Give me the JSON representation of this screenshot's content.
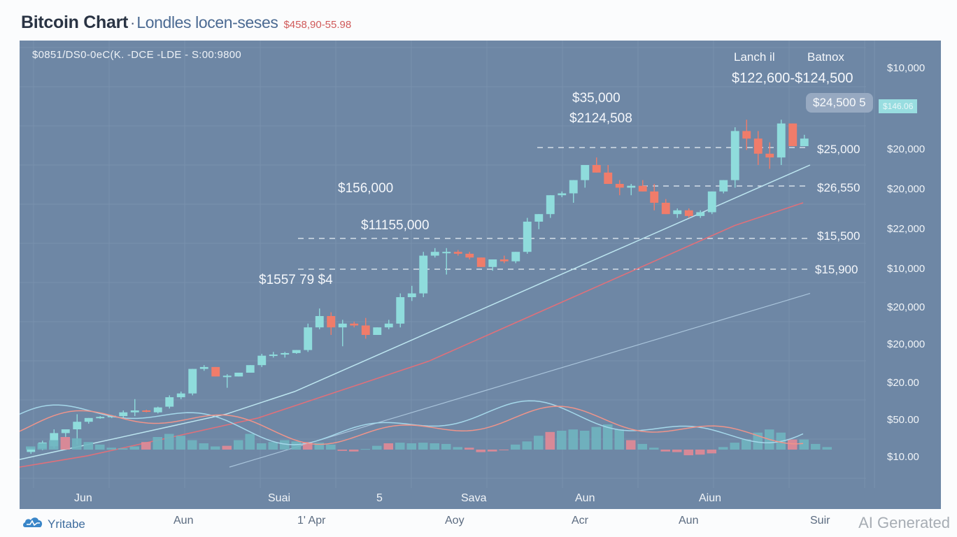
{
  "header": {
    "title": "Bitcoin Chart",
    "separator": "·",
    "subtitle": "Londles locen-seses",
    "price_range": "$458,90-55.98"
  },
  "panel": {
    "ticker_line": "$0851/DS0-0eC(K. -DCE -LDE - S:00:9800",
    "annotations": {
      "peak_label_a": "Lanch il",
      "peak_label_b": "Batnox",
      "peak_range": "$122,600-$124,500",
      "mid_high_1": "$35,000",
      "mid_high_2": "$2124,508",
      "left_high_1": "$156,000",
      "left_high_2": "$11155,000",
      "left_low": "$1557 79 $4"
    },
    "current_price_pill": "$24,500 5",
    "current_price_tag": "$146.06",
    "level_labels": [
      "$25,000",
      "$26,550",
      "$15,500",
      "$15,900"
    ]
  },
  "chart_data": {
    "type": "candlestick",
    "title": "Bitcoin Chart",
    "y_axis_ticks": [
      "$10,000",
      "$20,000",
      "$20,000",
      "$22,000",
      "$10,000",
      "$20,000",
      "$20,000",
      "$20.00",
      "$50.00",
      "$10.00"
    ],
    "x_axis_ticks_inner": [
      "Jun",
      "Suai",
      "5",
      "Sava",
      "Aun",
      "Aiun"
    ],
    "x_axis_ticks_outer": [
      "Aun",
      "1' Apr",
      "Aoy",
      "Acr",
      "Aun",
      "Suir"
    ],
    "ylim": [
      0,
      100
    ],
    "candles": [
      {
        "o": 4,
        "h": 5,
        "l": 3.5,
        "c": 5
      },
      {
        "o": 5,
        "h": 7,
        "l": 4.5,
        "c": 6.5
      },
      {
        "o": 5.5,
        "h": 10,
        "l": 5,
        "c": 9
      },
      {
        "o": 9,
        "h": 10,
        "l": 8,
        "c": 10
      },
      {
        "o": 10,
        "h": 14,
        "l": 6,
        "c": 12
      },
      {
        "o": 12,
        "h": 13,
        "l": 11.5,
        "c": 13
      },
      {
        "o": 13,
        "h": 13.5,
        "l": 12.8,
        "c": 13.3
      },
      {
        "o": 13.2,
        "h": 13.8,
        "l": 13,
        "c": 13.6
      },
      {
        "o": 13.5,
        "h": 15,
        "l": 13,
        "c": 14.5
      },
      {
        "o": 14.5,
        "h": 18,
        "l": 13.5,
        "c": 15
      },
      {
        "o": 15,
        "h": 15.2,
        "l": 14.5,
        "c": 14.7
      },
      {
        "o": 14.5,
        "h": 16,
        "l": 14.2,
        "c": 15.8
      },
      {
        "o": 16,
        "h": 19,
        "l": 15.5,
        "c": 18.5
      },
      {
        "o": 18.5,
        "h": 20,
        "l": 18,
        "c": 19.5
      },
      {
        "o": 19.5,
        "h": 26,
        "l": 19,
        "c": 26
      },
      {
        "o": 26,
        "h": 27,
        "l": 25.5,
        "c": 26.5
      },
      {
        "o": 26.5,
        "h": 26.5,
        "l": 24,
        "c": 24
      },
      {
        "o": 24,
        "h": 24.6,
        "l": 21,
        "c": 24.2
      },
      {
        "o": 24,
        "h": 25,
        "l": 24,
        "c": 25
      },
      {
        "o": 25,
        "h": 27,
        "l": 25,
        "c": 27
      },
      {
        "o": 27,
        "h": 30,
        "l": 26.5,
        "c": 29.5
      },
      {
        "o": 29.5,
        "h": 30.5,
        "l": 29,
        "c": 29.8
      },
      {
        "o": 29.8,
        "h": 30.5,
        "l": 29,
        "c": 30.2
      },
      {
        "o": 30.2,
        "h": 31,
        "l": 30,
        "c": 31
      },
      {
        "o": 31,
        "h": 38,
        "l": 30.5,
        "c": 37
      },
      {
        "o": 37,
        "h": 42,
        "l": 36.5,
        "c": 40
      },
      {
        "o": 40,
        "h": 41,
        "l": 35,
        "c": 37
      },
      {
        "o": 37,
        "h": 39,
        "l": 32,
        "c": 38
      },
      {
        "o": 38,
        "h": 38.5,
        "l": 37,
        "c": 37.5
      },
      {
        "o": 37.5,
        "h": 39.5,
        "l": 34,
        "c": 35
      },
      {
        "o": 35,
        "h": 37,
        "l": 35,
        "c": 37
      },
      {
        "o": 37,
        "h": 39,
        "l": 36.5,
        "c": 38
      },
      {
        "o": 38,
        "h": 46,
        "l": 37,
        "c": 45
      },
      {
        "o": 45,
        "h": 48,
        "l": 44,
        "c": 46
      },
      {
        "o": 46,
        "h": 57,
        "l": 45,
        "c": 56
      },
      {
        "o": 56,
        "h": 58,
        "l": 55.5,
        "c": 57
      },
      {
        "o": 57,
        "h": 58,
        "l": 51,
        "c": 57
      },
      {
        "o": 57,
        "h": 57.5,
        "l": 56,
        "c": 56.5
      },
      {
        "o": 56.5,
        "h": 57,
        "l": 55,
        "c": 55.5
      },
      {
        "o": 55.5,
        "h": 55.5,
        "l": 53,
        "c": 53
      },
      {
        "o": 53,
        "h": 55,
        "l": 52,
        "c": 55
      },
      {
        "o": 55,
        "h": 56,
        "l": 54,
        "c": 54.5
      },
      {
        "o": 54.5,
        "h": 57,
        "l": 54,
        "c": 57
      },
      {
        "o": 57,
        "h": 66,
        "l": 56.5,
        "c": 65
      },
      {
        "o": 65,
        "h": 67,
        "l": 63,
        "c": 67
      },
      {
        "o": 67,
        "h": 72,
        "l": 66,
        "c": 72
      },
      {
        "o": 72,
        "h": 73,
        "l": 71.5,
        "c": 72.5
      },
      {
        "o": 72.5,
        "h": 76,
        "l": 70,
        "c": 76
      },
      {
        "o": 76,
        "h": 80,
        "l": 74,
        "c": 80
      },
      {
        "o": 80,
        "h": 82,
        "l": 78,
        "c": 78
      },
      {
        "o": 78,
        "h": 80,
        "l": 75,
        "c": 75
      },
      {
        "o": 75,
        "h": 76,
        "l": 72,
        "c": 74
      },
      {
        "o": 74,
        "h": 75,
        "l": 72,
        "c": 74.5
      },
      {
        "o": 74.5,
        "h": 76,
        "l": 73,
        "c": 73
      },
      {
        "o": 73,
        "h": 75,
        "l": 68,
        "c": 70
      },
      {
        "o": 70,
        "h": 71,
        "l": 67,
        "c": 67
      },
      {
        "o": 67,
        "h": 68.5,
        "l": 66,
        "c": 68
      },
      {
        "o": 68,
        "h": 68.5,
        "l": 66,
        "c": 66.5
      },
      {
        "o": 66.5,
        "h": 68,
        "l": 66,
        "c": 67.5
      },
      {
        "o": 67.5,
        "h": 73,
        "l": 67,
        "c": 73
      },
      {
        "o": 73,
        "h": 76,
        "l": 72.5,
        "c": 76
      },
      {
        "o": 76,
        "h": 90,
        "l": 74,
        "c": 89
      },
      {
        "o": 89,
        "h": 92,
        "l": 84,
        "c": 87
      },
      {
        "o": 87,
        "h": 89,
        "l": 80,
        "c": 83
      },
      {
        "o": 83,
        "h": 86,
        "l": 79,
        "c": 82
      },
      {
        "o": 82,
        "h": 92,
        "l": 80,
        "c": 91
      },
      {
        "o": 91,
        "h": 91,
        "l": 85,
        "c": 85
      },
      {
        "o": 85,
        "h": 88,
        "l": 85,
        "c": 87
      }
    ],
    "ma_fast": [
      2,
      4,
      6,
      8,
      10,
      12,
      14,
      17,
      20,
      24,
      28,
      32,
      36,
      40,
      44,
      48,
      52,
      56,
      60,
      64,
      68,
      72,
      76,
      80
    ],
    "ma_slow": [
      0,
      1.5,
      3,
      5,
      7,
      9,
      11,
      13,
      16,
      19,
      22,
      25,
      28,
      32,
      36,
      40,
      44,
      48,
      52,
      56,
      60,
      64,
      67,
      70
    ],
    "ma_long": [
      0,
      2,
      4,
      6,
      8,
      10,
      12,
      14,
      16,
      18,
      20,
      22,
      24,
      26,
      28,
      30,
      32,
      34,
      36,
      38,
      40,
      42,
      44,
      46
    ],
    "macd": [
      0.5,
      1,
      1.5,
      2,
      1.8,
      1.2,
      0.8,
      0.3,
      0.2,
      0.5,
      1.2,
      2,
      2.5,
      2.2,
      1.5,
      1,
      0.5,
      0.6,
      1.5,
      2.5,
      1,
      1.2,
      1.5,
      1.3,
      1.2,
      1.1,
      0.8,
      -0.2,
      -0.3,
      0.1,
      0.6,
      1,
      1.1,
      1.0,
      1.1,
      1.0,
      0.9,
      0.4,
      0.3,
      -0.4,
      -0.3,
      -0.1,
      0.8,
      1.3,
      2.2,
      2.8,
      3,
      3.2,
      3,
      3.6,
      4,
      3.2,
      1.5,
      0.9,
      0.3,
      -0.3,
      -0.4,
      -0.9,
      -0.8,
      -0.6,
      0.4,
      1.1,
      1.6,
      2.7,
      3.2,
      2.7,
      1.6,
      1.6,
      0.9,
      0.4
    ]
  },
  "footer": {
    "logo_text": "Yritabe",
    "watermark": "AI Generated"
  },
  "colors": {
    "background": "#6e87a5",
    "bull": "#8fdcdc",
    "bear": "#f07c6a",
    "ma_fast": "#bde6f0",
    "ma_slow": "#e0707a",
    "macd_line": "#a5d8ea",
    "signal_line": "#f0948a",
    "hist_pos": "#6fb5c0",
    "hist_neg": "#e28a96"
  }
}
